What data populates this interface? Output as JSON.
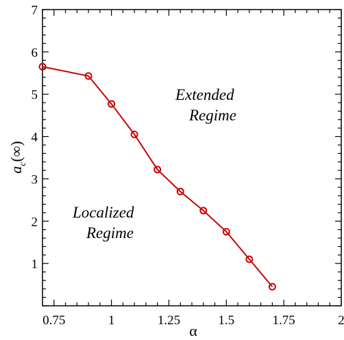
{
  "chart_data": {
    "type": "line",
    "title": "",
    "xlabel": "α",
    "ylabel_main": "a",
    "ylabel_sub": "c",
    "ylabel_tail": "(∞)",
    "xlim": [
      0.7,
      2.0
    ],
    "ylim": [
      0,
      7
    ],
    "x_ticks": [
      0.75,
      1.0,
      1.25,
      1.5,
      1.75,
      2.0
    ],
    "x_tick_labels": [
      "0.75",
      "1",
      "1.25",
      "1.5",
      "1.75",
      "2"
    ],
    "y_ticks": [
      1,
      2,
      3,
      4,
      5,
      6,
      7
    ],
    "y_tick_labels": [
      "1",
      "2",
      "3",
      "4",
      "5",
      "6",
      "7"
    ],
    "grid": false,
    "series": [
      {
        "color": "#cc0000",
        "marker": "open-circle",
        "x": [
          0.7,
          0.9,
          1.0,
          1.1,
          1.2,
          1.3,
          1.4,
          1.5,
          1.6,
          1.7
        ],
        "y": [
          5.65,
          5.43,
          4.77,
          4.05,
          3.22,
          2.7,
          2.25,
          1.75,
          1.1,
          0.45
        ]
      }
    ],
    "annotations": [
      {
        "lines": [
          "Extended",
          "Regime"
        ]
      },
      {
        "lines": [
          "Localized",
          "Regime"
        ]
      }
    ]
  }
}
